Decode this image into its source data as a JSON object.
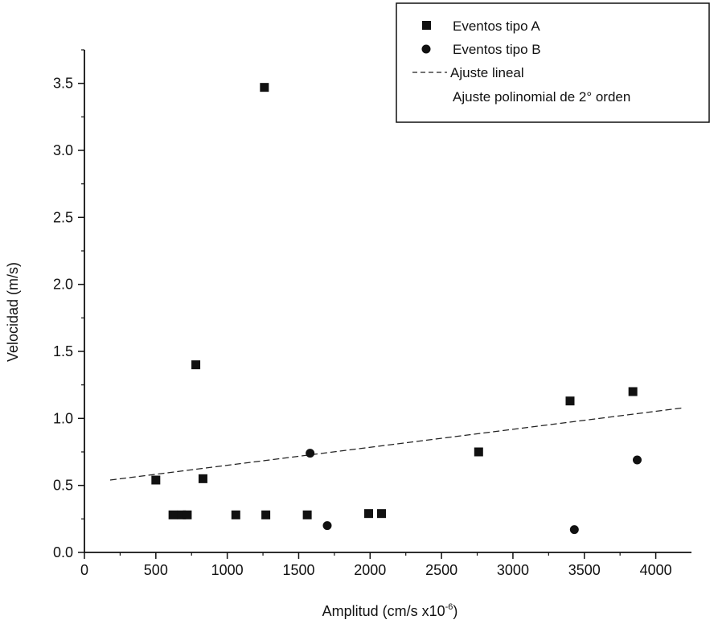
{
  "chart_data": {
    "type": "scatter",
    "xlabel": "Amplitud (cm/s x10",
    "xlabel_sup": "-6",
    "xlabel_suffix": ")",
    "ylabel": "Velocidad (m/s)",
    "xlim": [
      0,
      4250
    ],
    "ylim": [
      0,
      3.75
    ],
    "x_ticks": [
      0,
      500,
      1000,
      1500,
      2000,
      2500,
      3000,
      3500,
      4000
    ],
    "x_tick_labels": [
      "0",
      "500",
      "1000",
      "1500",
      "2000",
      "2500",
      "3000",
      "3500",
      "4000"
    ],
    "y_ticks": [
      0,
      0.5,
      1.0,
      1.5,
      2.0,
      2.5,
      3.0,
      3.5
    ],
    "y_tick_labels": [
      "0.0",
      "0.5",
      "1.0",
      "1.5",
      "2.0",
      "2.5",
      "3.0",
      "3.5"
    ],
    "grid": false,
    "legend_position": "top-right",
    "series": [
      {
        "name": "Eventos tipo A",
        "marker": "square",
        "color": "#111111",
        "x": [
          500,
          620,
          680,
          720,
          780,
          830,
          1060,
          1260,
          1270,
          1560,
          1990,
          2080,
          2760,
          3400,
          3840
        ],
        "y": [
          0.54,
          0.28,
          0.28,
          0.28,
          1.4,
          0.55,
          0.28,
          3.47,
          0.28,
          0.28,
          0.29,
          0.29,
          0.75,
          1.13,
          1.2
        ]
      },
      {
        "name": "Eventos tipo B",
        "marker": "circle",
        "color": "#111111",
        "x": [
          1580,
          1700,
          3430,
          3870
        ],
        "y": [
          0.74,
          0.2,
          0.17,
          0.69
        ]
      }
    ],
    "fits": [
      {
        "name": "Ajuste lineal",
        "style": "dashed",
        "color": "#222222",
        "x": [
          180,
          4200
        ],
        "y": [
          0.54,
          1.08
        ]
      },
      {
        "name": "Ajuste polinomial de 2° orden",
        "style": "none",
        "color": "#222222"
      }
    ]
  }
}
